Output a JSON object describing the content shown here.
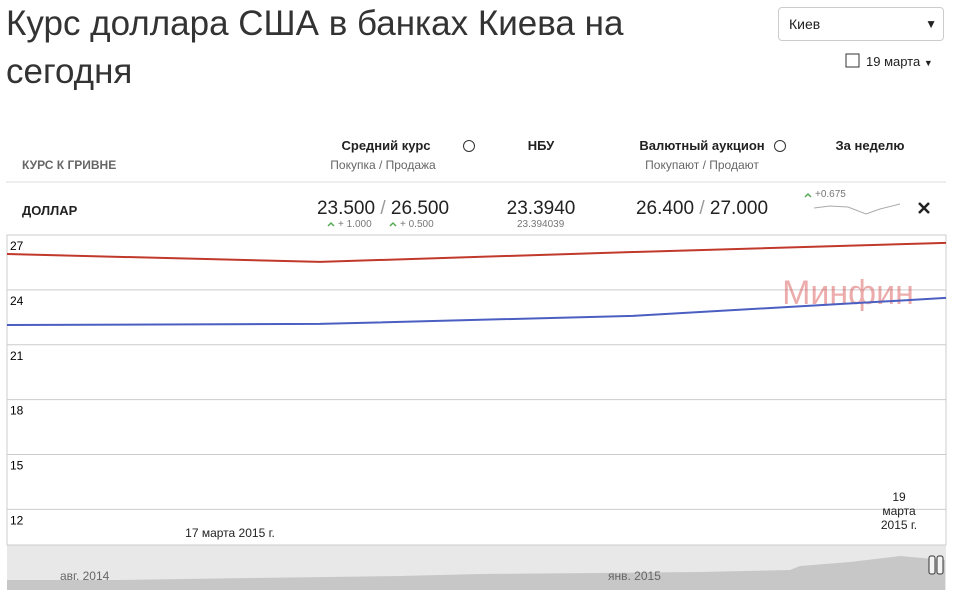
{
  "header": {
    "title": "Курс доллара США в банках Киева на сегодня",
    "city": "Киев",
    "date": "19 марта"
  },
  "table": {
    "columns": [
      {
        "title": "КУРС К ГРИВНЕ"
      },
      {
        "title": "Средний курс",
        "subtitle": "Покупка / Продажа"
      },
      {
        "title": "НБУ"
      },
      {
        "title": "Валютный аукцион",
        "subtitle": "Покупают / Продают"
      },
      {
        "title": "За неделю"
      }
    ],
    "row": {
      "currency": "ДОЛЛАР",
      "separator": "/",
      "avg_buy": "23.500",
      "avg_sell": "26.500",
      "avg_buy_change": "+ 1.000",
      "avg_sell_change": "+ 0.500",
      "nbu": "23.3940",
      "nbu_exact": "23.394039",
      "auction_buy": "26.400",
      "auction_sell": "27.000",
      "week_change": "+0.675"
    }
  },
  "chart_data": {
    "type": "line",
    "watermark": "Минфин",
    "categories": [
      null,
      "17 марта 2015 г.",
      null,
      "19 марта 2015 г."
    ],
    "series": [
      {
        "color": "#c0392b",
        "values": [
          25.96,
          25.53,
          26.07,
          26.57
        ]
      },
      {
        "color": "#4a5fc1",
        "values": [
          22.08,
          22.14,
          22.58,
          23.56
        ]
      }
    ],
    "ylim": [
      10,
      27
    ],
    "yticks": [
      12,
      15,
      18,
      21,
      24,
      27
    ],
    "grid": true,
    "navigator_labels": [
      "авг. 2014",
      "янв. 2015"
    ]
  }
}
